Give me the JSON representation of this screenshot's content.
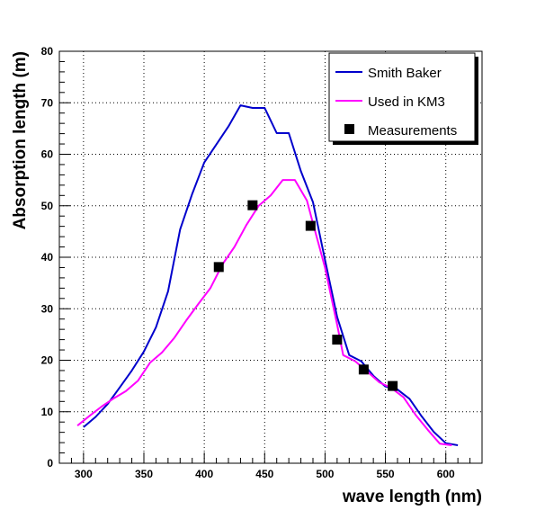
{
  "chart_data": {
    "type": "line",
    "title": "",
    "xlabel": "wave length (nm)",
    "ylabel": "Absorption length (m)",
    "xlim": [
      280,
      630
    ],
    "ylim": [
      0,
      80
    ],
    "x_ticks": [
      300,
      350,
      400,
      450,
      500,
      550,
      600
    ],
    "x_tick_labels": [
      "300",
      "350",
      "400",
      "450",
      "500",
      "550",
      "600"
    ],
    "y_ticks": [
      0,
      10,
      20,
      30,
      40,
      50,
      60,
      70,
      80
    ],
    "y_tick_labels": [
      "0",
      "10",
      "20",
      "30",
      "40",
      "50",
      "60",
      "70",
      "80"
    ],
    "grid": true,
    "legend_position": "top-right",
    "series": [
      {
        "name": "Smith Baker",
        "kind": "line",
        "color": "#0000cc",
        "x": [
          300,
          310,
          320,
          330,
          340,
          350,
          360,
          370,
          380,
          390,
          400,
          410,
          420,
          430,
          440,
          450,
          460,
          470,
          480,
          490,
          500,
          510,
          520,
          530,
          540,
          550,
          560,
          570,
          580,
          590,
          600,
          610
        ],
        "y": [
          7.0,
          9.0,
          11.5,
          14.7,
          18.0,
          21.7,
          26.4,
          33.4,
          45.4,
          52.3,
          58.4,
          61.9,
          65.4,
          69.5,
          69.0,
          69.0,
          64.1,
          64.1,
          56.7,
          50.7,
          39.5,
          28.4,
          21.0,
          19.8,
          17.0,
          14.9,
          14.3,
          12.5,
          9.1,
          6.1,
          3.9,
          3.5
        ]
      },
      {
        "name": "Used in KM3",
        "kind": "line",
        "color": "#ff00ff",
        "x": [
          295,
          305,
          315,
          325,
          335,
          345,
          355,
          365,
          375,
          385,
          395,
          405,
          415,
          425,
          435,
          445,
          455,
          465,
          475,
          485,
          490,
          500,
          510,
          515,
          525,
          535,
          545,
          555,
          565,
          575,
          585,
          595,
          605
        ],
        "y": [
          7.3,
          9.2,
          11.0,
          12.6,
          14.0,
          16.0,
          19.5,
          21.5,
          24.3,
          27.7,
          30.9,
          34.0,
          38.6,
          42.0,
          46.3,
          50.0,
          52.0,
          55.0,
          55.0,
          51.0,
          46.6,
          38.0,
          26.9,
          21.0,
          19.8,
          17.8,
          15.7,
          14.6,
          12.8,
          9.4,
          6.5,
          3.8,
          3.5
        ]
      },
      {
        "name": "Measurements",
        "kind": "markers",
        "color": "#000000",
        "x": [
          412,
          440,
          488,
          510,
          532,
          556
        ],
        "y": [
          38.1,
          50.1,
          46.1,
          24.0,
          18.2,
          15.0
        ]
      }
    ]
  }
}
